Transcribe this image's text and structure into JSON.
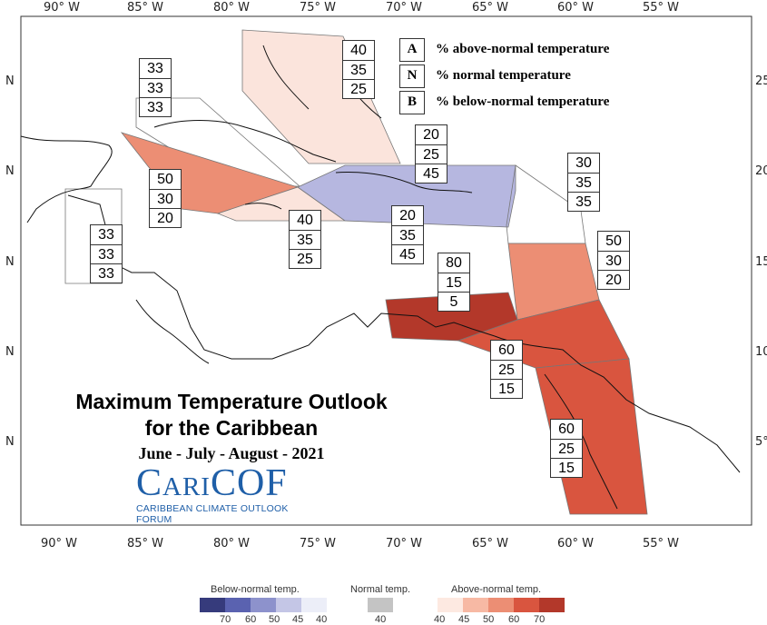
{
  "map": {
    "top_lon_labels": [
      "90° W",
      "85° W",
      "80° W",
      "75° W",
      "70° W",
      "65° W",
      "60° W",
      "55° W"
    ],
    "bottom_lon_labels": [
      "90° W",
      "85° W",
      "80° W",
      "75° W",
      "70° W",
      "65° W",
      "60° W",
      "55° W"
    ],
    "left_lat_labels": [
      "N",
      "N",
      "N",
      "N",
      "N"
    ],
    "right_lat_labels": [
      "25°",
      "20°",
      "15°",
      "10°",
      "5°"
    ]
  },
  "key": [
    {
      "letter": "A",
      "desc": "% above-normal temperature"
    },
    {
      "letter": "N",
      "desc": "% normal temperature"
    },
    {
      "letter": "B",
      "desc": "% below-normal temperature"
    }
  ],
  "regions": [
    {
      "name": "bahamas",
      "A": "40",
      "N": "35",
      "B": "25",
      "fill": "#fbe4dc"
    },
    {
      "name": "gulf-mexico-se",
      "A": "33",
      "N": "33",
      "B": "33",
      "fill": "#ffffff"
    },
    {
      "name": "cayman-jamaica-west",
      "A": "50",
      "N": "30",
      "B": "20",
      "fill": "#ec8e74"
    },
    {
      "name": "belize",
      "A": "33",
      "N": "33",
      "B": "33",
      "fill": "#ffffff"
    },
    {
      "name": "jamaica",
      "A": "40",
      "N": "35",
      "B": "25",
      "fill": "#fbe4dc"
    },
    {
      "name": "greater-antilles-east",
      "A": "20",
      "N": "25",
      "B": "45",
      "fill": "#b6b7e0"
    },
    {
      "name": "hispaniola-puerto-rico",
      "A": "20",
      "N": "35",
      "B": "45",
      "fill": "#b6b7e0"
    },
    {
      "name": "leeward-islands",
      "A": "30",
      "N": "35",
      "B": "35",
      "fill": "#ffffff"
    },
    {
      "name": "windward-islands",
      "A": "50",
      "N": "30",
      "B": "20",
      "fill": "#ec8e74"
    },
    {
      "name": "abc-islands",
      "A": "80",
      "N": "15",
      "B": "5",
      "fill": "#b3382a"
    },
    {
      "name": "trinidad-tobago",
      "A": "60",
      "N": "25",
      "B": "15",
      "fill": "#d9553f"
    },
    {
      "name": "guianas",
      "A": "60",
      "N": "25",
      "B": "15",
      "fill": "#d9553f"
    }
  ],
  "title": "Maximum Temperature Outlook",
  "title_line2": "for the Caribbean",
  "subtitle": "June - July - August - 2021",
  "logo": {
    "word": "CariCOF",
    "tagline": "CARIBBEAN CLIMATE OUTLOOK FORUM"
  },
  "color_legend": {
    "below_label": "Below-normal temp.",
    "normal_label": "Normal temp.",
    "above_label": "Above-normal temp.",
    "below_colors": [
      "#363b7c",
      "#5a62b0",
      "#8d92cc",
      "#c4c6e6",
      "#eceef8"
    ],
    "below_ticks": [
      "70",
      "60",
      "50",
      "45",
      "40"
    ],
    "normal_color": "#c4c4c4",
    "normal_tick": "40",
    "above_colors": [
      "#fde9e1",
      "#f7b9a4",
      "#ec8e74",
      "#d9553f",
      "#b3382a"
    ],
    "above_ticks": [
      "40",
      "45",
      "50",
      "60",
      "70"
    ]
  }
}
